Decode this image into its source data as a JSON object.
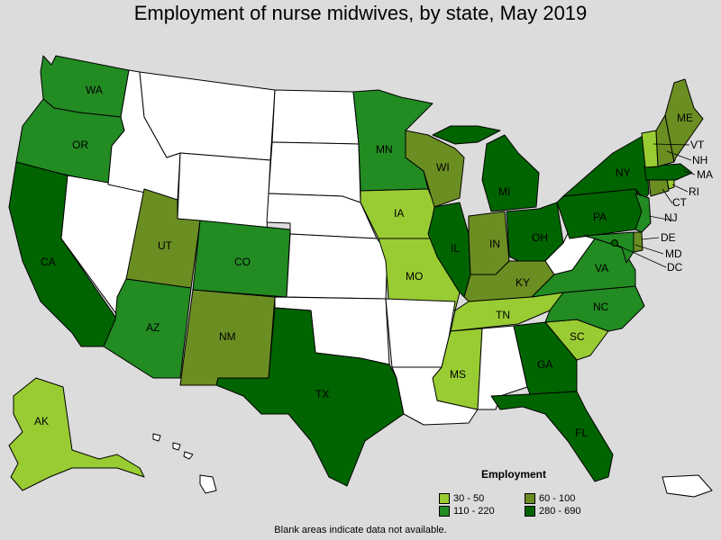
{
  "title": "Employment of nurse midwives, by state, May 2019",
  "legend": {
    "title": "Employment",
    "bins": [
      {
        "label": "30 - 50",
        "color": "#99cc33"
      },
      {
        "label": "60 - 100",
        "color": "#6b8e23"
      },
      {
        "label": "110 - 220",
        "color": "#228b22"
      },
      {
        "label": "280 - 690",
        "color": "#006400"
      }
    ]
  },
  "footnote": "Blank areas indicate data not available.",
  "colors": {
    "nodata": "#ffffff",
    "background": "#dcdcdc"
  },
  "states": {
    "WA": {
      "bin": 2
    },
    "OR": {
      "bin": 2
    },
    "CA": {
      "bin": 3
    },
    "NV": {
      "bin": null
    },
    "ID": {
      "bin": null
    },
    "MT": {
      "bin": null
    },
    "WY": {
      "bin": null
    },
    "UT": {
      "bin": 1
    },
    "AZ": {
      "bin": 2
    },
    "CO": {
      "bin": 2
    },
    "NM": {
      "bin": 1
    },
    "ND": {
      "bin": null
    },
    "SD": {
      "bin": null
    },
    "NE": {
      "bin": null
    },
    "KS": {
      "bin": null
    },
    "OK": {
      "bin": null
    },
    "TX": {
      "bin": 3
    },
    "MN": {
      "bin": 2
    },
    "IA": {
      "bin": 0
    },
    "MO": {
      "bin": 0
    },
    "AR": {
      "bin": null
    },
    "LA": {
      "bin": null
    },
    "WI": {
      "bin": 1
    },
    "IL": {
      "bin": 3
    },
    "MI": {
      "bin": 3
    },
    "IN": {
      "bin": 1
    },
    "OH": {
      "bin": 3
    },
    "KY": {
      "bin": 1
    },
    "TN": {
      "bin": 0
    },
    "MS": {
      "bin": 0
    },
    "AL": {
      "bin": null
    },
    "GA": {
      "bin": 3
    },
    "FL": {
      "bin": 3
    },
    "SC": {
      "bin": 0
    },
    "NC": {
      "bin": 2
    },
    "VA": {
      "bin": 2
    },
    "WV": {
      "bin": null
    },
    "PA": {
      "bin": 3
    },
    "NY": {
      "bin": 3
    },
    "NJ": {
      "bin": 2
    },
    "DE": {
      "bin": 1
    },
    "MD": {
      "bin": 2
    },
    "DC": {
      "bin": 3
    },
    "CT": {
      "bin": 1
    },
    "RI": {
      "bin": 0
    },
    "MA": {
      "bin": 3
    },
    "VT": {
      "bin": 0
    },
    "NH": {
      "bin": 1
    },
    "ME": {
      "bin": 1
    },
    "AK": {
      "bin": 0
    },
    "HI": {
      "bin": null
    },
    "PR": {
      "bin": null
    }
  }
}
